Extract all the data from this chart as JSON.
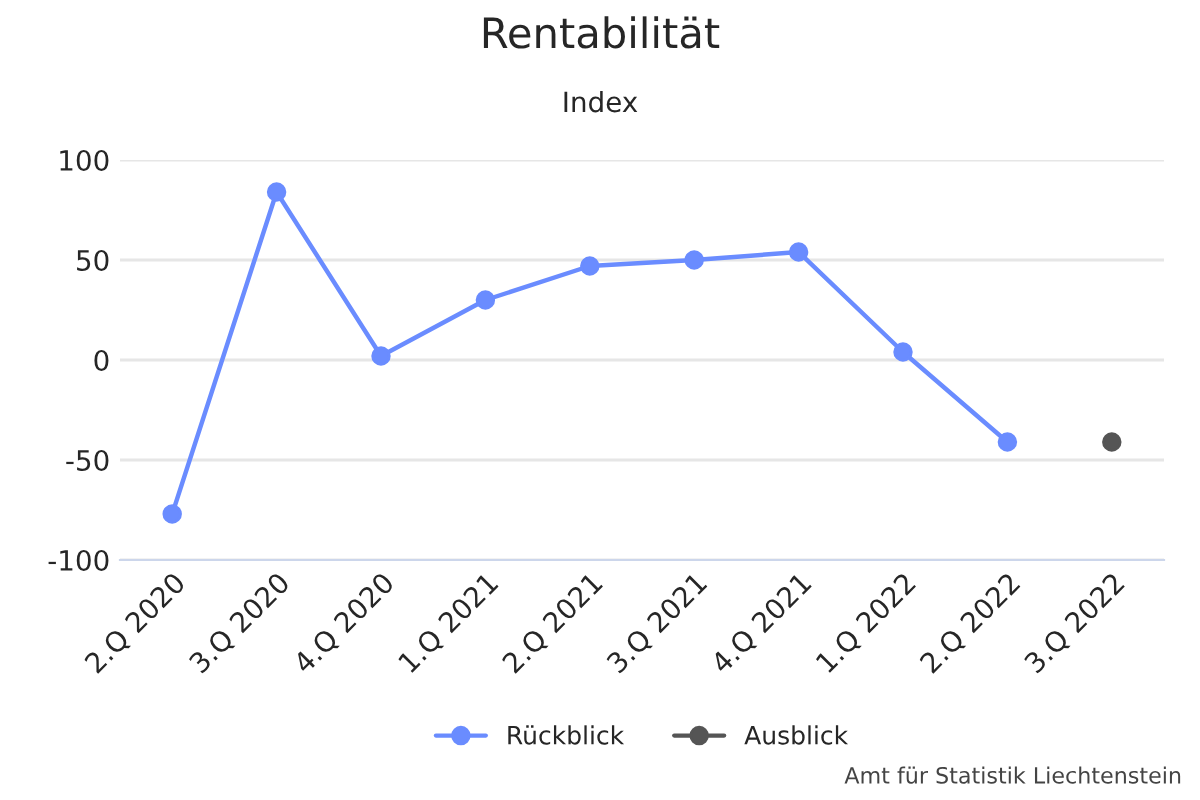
{
  "chart_data": {
    "type": "line",
    "title": "Rentabilität",
    "subtitle": "Index",
    "categories": [
      "2.Q 2020",
      "3.Q 2020",
      "4.Q 2020",
      "1.Q 2021",
      "2.Q 2021",
      "3.Q 2021",
      "4.Q 2021",
      "1.Q 2022",
      "2.Q 2022",
      "3.Q 2022"
    ],
    "series": [
      {
        "name": "Rückblick",
        "color": "#6a8cff",
        "values": [
          -77,
          84,
          2,
          30,
          47,
          50,
          54,
          4,
          -41,
          null
        ]
      },
      {
        "name": "Ausblick",
        "color": "#555555",
        "values": [
          null,
          null,
          null,
          null,
          null,
          null,
          null,
          null,
          null,
          -41
        ]
      }
    ],
    "ylim": [
      -100,
      100
    ],
    "yticks": [
      -100,
      -50,
      0,
      50,
      100
    ],
    "grid": "y",
    "legend": "bottom",
    "marker": "circle",
    "line_style": "solid",
    "annotations": [
      "Amt für Statistik Liechtenstein"
    ]
  }
}
